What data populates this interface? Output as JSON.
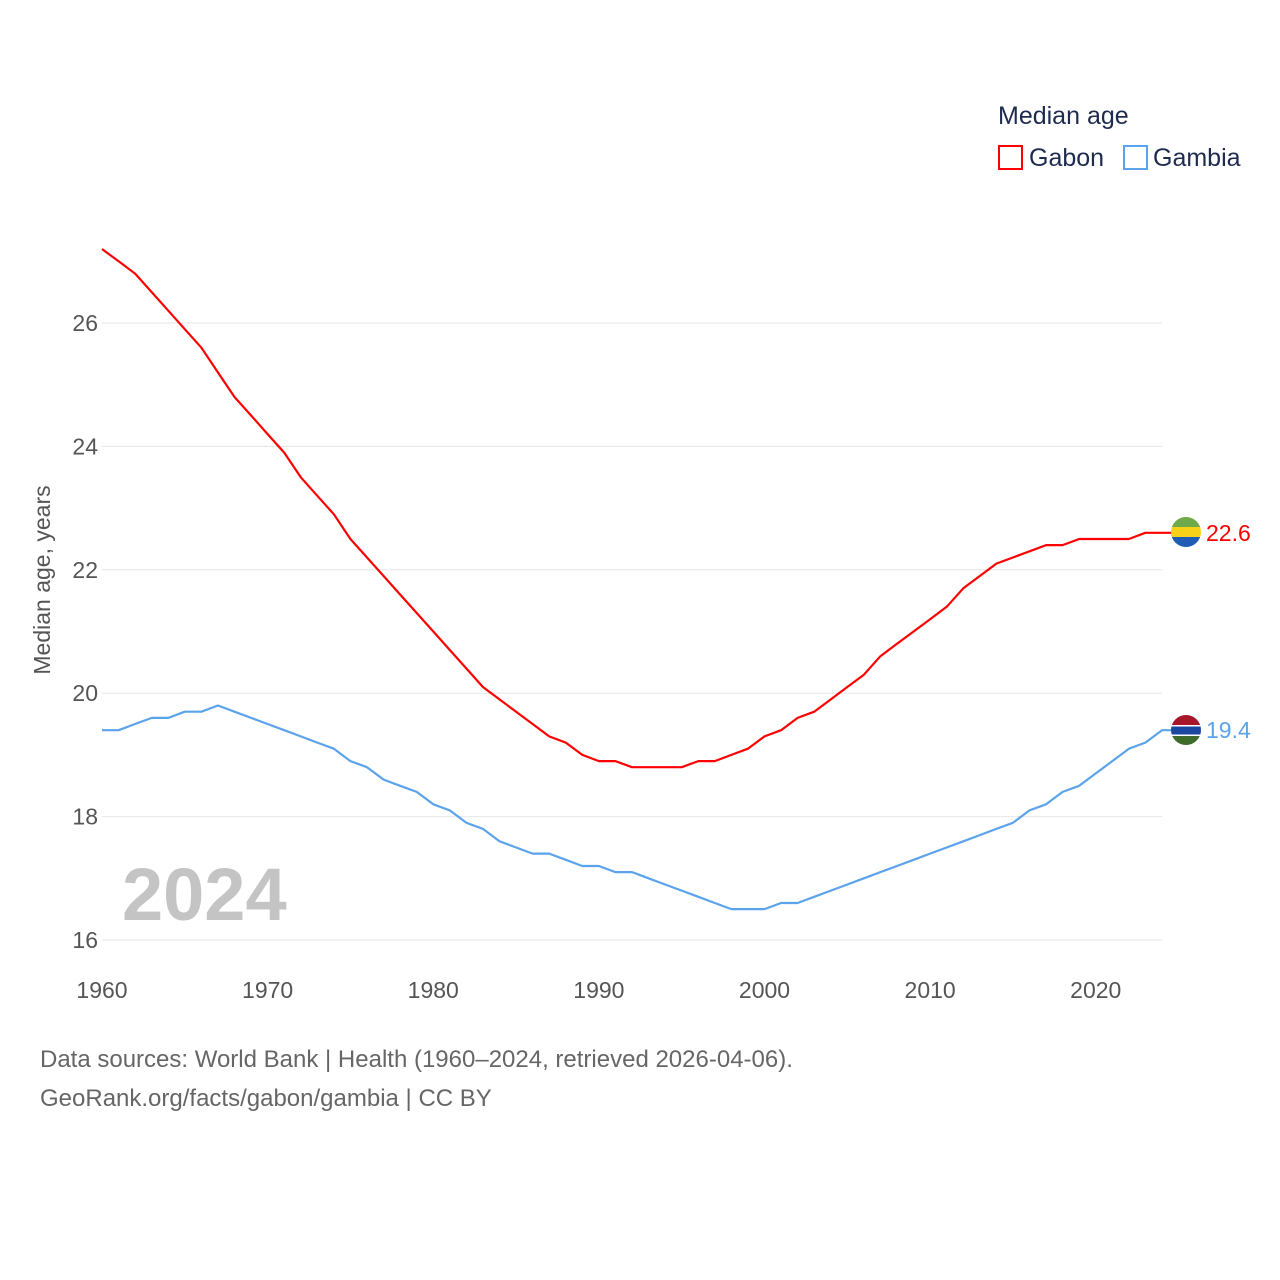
{
  "chart_data": {
    "type": "line",
    "title": "",
    "xlabel": "",
    "ylabel": "Median age, years",
    "xlim": [
      1960,
      2024
    ],
    "ylim": [
      16,
      27.2
    ],
    "yticks": [
      16,
      18,
      20,
      22,
      24,
      26
    ],
    "xticks": [
      1960,
      1970,
      1980,
      1990,
      2000,
      2010,
      2020
    ],
    "grid": true,
    "year_watermark": "2024",
    "legend": {
      "title": "Median age",
      "placement": "top-right"
    },
    "x_start": 1960,
    "series": [
      {
        "name": "Gabon",
        "color": "#ff0000",
        "end_label": "22.6",
        "flag": "gabon-flag",
        "values": [
          27.2,
          27.0,
          26.8,
          26.5,
          26.2,
          25.9,
          25.6,
          25.2,
          24.8,
          24.5,
          24.2,
          23.9,
          23.5,
          23.2,
          22.9,
          22.5,
          22.2,
          21.9,
          21.6,
          21.3,
          21.0,
          20.7,
          20.4,
          20.1,
          19.9,
          19.7,
          19.5,
          19.3,
          19.2,
          19.0,
          18.9,
          18.9,
          18.8,
          18.8,
          18.8,
          18.8,
          18.9,
          18.9,
          19.0,
          19.1,
          19.3,
          19.4,
          19.6,
          19.7,
          19.9,
          20.1,
          20.3,
          20.6,
          20.8,
          21.0,
          21.2,
          21.4,
          21.7,
          21.9,
          22.1,
          22.2,
          22.3,
          22.4,
          22.4,
          22.5,
          22.5,
          22.5,
          22.5,
          22.6,
          22.6
        ]
      },
      {
        "name": "Gambia",
        "color": "#5ba3ea",
        "end_label": "19.4",
        "flag": "gambia-flag",
        "values": [
          19.4,
          19.4,
          19.5,
          19.6,
          19.6,
          19.7,
          19.7,
          19.8,
          19.7,
          19.6,
          19.5,
          19.4,
          19.3,
          19.2,
          19.1,
          18.9,
          18.8,
          18.6,
          18.5,
          18.4,
          18.2,
          18.1,
          17.9,
          17.8,
          17.6,
          17.5,
          17.4,
          17.4,
          17.3,
          17.2,
          17.2,
          17.1,
          17.1,
          17.0,
          16.9,
          16.8,
          16.7,
          16.6,
          16.5,
          16.5,
          16.5,
          16.6,
          16.6,
          16.7,
          16.8,
          16.9,
          17.0,
          17.1,
          17.2,
          17.3,
          17.4,
          17.5,
          17.6,
          17.7,
          17.8,
          17.9,
          18.1,
          18.2,
          18.4,
          18.5,
          18.7,
          18.9,
          19.1,
          19.2,
          19.4
        ]
      }
    ]
  },
  "footer": {
    "line1": "Data sources: World Bank | Health (1960–2024, retrieved 2026-04-06).",
    "line2": "GeoRank.org/facts/gabon/gambia | CC BY"
  }
}
